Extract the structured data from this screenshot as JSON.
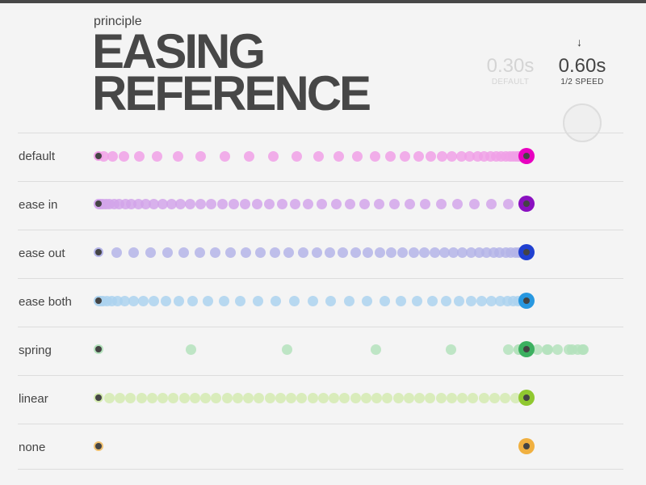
{
  "header": {
    "brand": "principle",
    "title_line1": "EASING",
    "title_line2": "REFERENCE"
  },
  "speeds": {
    "default": {
      "value": "0.30s",
      "label": "DEFAULT"
    },
    "half": {
      "value": "0.60s",
      "label": "1/2 SPEED"
    },
    "selected_icon": "arrow-down-icon"
  },
  "rows": [
    {
      "label": "default",
      "easing": "default",
      "color": "#f0a0e6",
      "end_color": "#e800c0"
    },
    {
      "label": "ease in",
      "easing": "ease-in",
      "color": "#d2a4ea",
      "end_color": "#8a10c0"
    },
    {
      "label": "ease out",
      "easing": "ease-out",
      "color": "#b4b4e8",
      "end_color": "#2040d0"
    },
    {
      "label": "ease both",
      "easing": "ease-both",
      "color": "#acd2ee",
      "end_color": "#2898e0"
    },
    {
      "label": "spring",
      "easing": "spring",
      "color": "#b4e2bc",
      "end_color": "#3cb060"
    },
    {
      "label": "linear",
      "easing": "linear",
      "color": "#d4eab0",
      "end_color": "#90c830"
    },
    {
      "label": "none",
      "easing": "none",
      "color": "#f0c070",
      "end_color": "#f0b040"
    }
  ]
}
